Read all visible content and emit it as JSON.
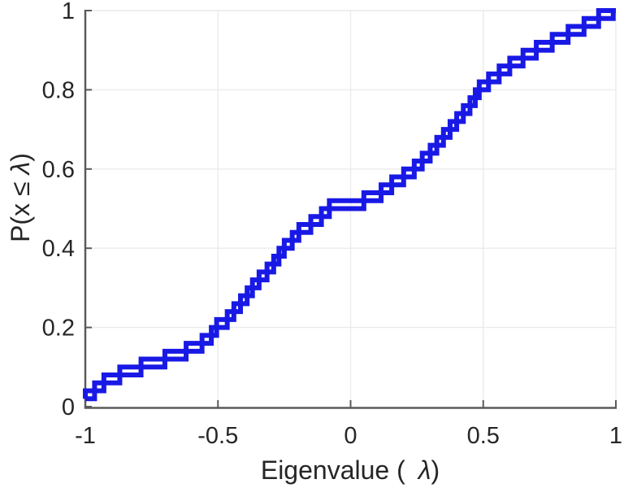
{
  "xlabel": {
    "prefix": "Eigenvalue (",
    "lambda": "λ",
    "suffix": ")"
  },
  "ylabel": {
    "prefix": "P(x ",
    "leq": "≤",
    "lambda": "λ",
    "suffix": ")"
  },
  "chart_data": {
    "type": "line",
    "subtype": "ecdf-stairs",
    "title": "",
    "xlabel": "Eigenvalue ( λ)",
    "ylabel": "P(x ≤ λ)",
    "xlim": [
      -1,
      1
    ],
    "ylim": [
      0,
      1
    ],
    "grid": true,
    "legend": "none",
    "xticks": [
      {
        "v": -1,
        "label": "-1"
      },
      {
        "v": -0.5,
        "label": "-0.5"
      },
      {
        "v": 0,
        "label": "0"
      },
      {
        "v": 0.5,
        "label": "0.5"
      },
      {
        "v": 1,
        "label": "1"
      }
    ],
    "yticks": [
      {
        "v": 0,
        "label": "0"
      },
      {
        "v": 0.2,
        "label": "0.2"
      },
      {
        "v": 0.4,
        "label": "0.4"
      },
      {
        "v": 0.6,
        "label": "0.6"
      },
      {
        "v": 0.8,
        "label": "0.8"
      },
      {
        "v": 1,
        "label": "1"
      }
    ],
    "n_points": 50,
    "ecdf_step": 0.02,
    "eigenvalues": [
      -1.0,
      -0.965,
      -0.93,
      -0.87,
      -0.79,
      -0.7,
      -0.62,
      -0.56,
      -0.525,
      -0.505,
      -0.465,
      -0.44,
      -0.415,
      -0.39,
      -0.37,
      -0.345,
      -0.315,
      -0.29,
      -0.27,
      -0.25,
      -0.22,
      -0.195,
      -0.15,
      -0.11,
      -0.08,
      0.05,
      0.115,
      0.155,
      0.2,
      0.24,
      0.27,
      0.3,
      0.325,
      0.35,
      0.375,
      0.4,
      0.425,
      0.45,
      0.47,
      0.485,
      0.52,
      0.56,
      0.6,
      0.65,
      0.7,
      0.76,
      0.82,
      0.88,
      0.935,
      0.99
    ],
    "line_color": "#1919E6",
    "line_width": 6,
    "axis_color": "#5a5a5a",
    "grid_color": "#ebebeb",
    "text_color": "#262626"
  }
}
